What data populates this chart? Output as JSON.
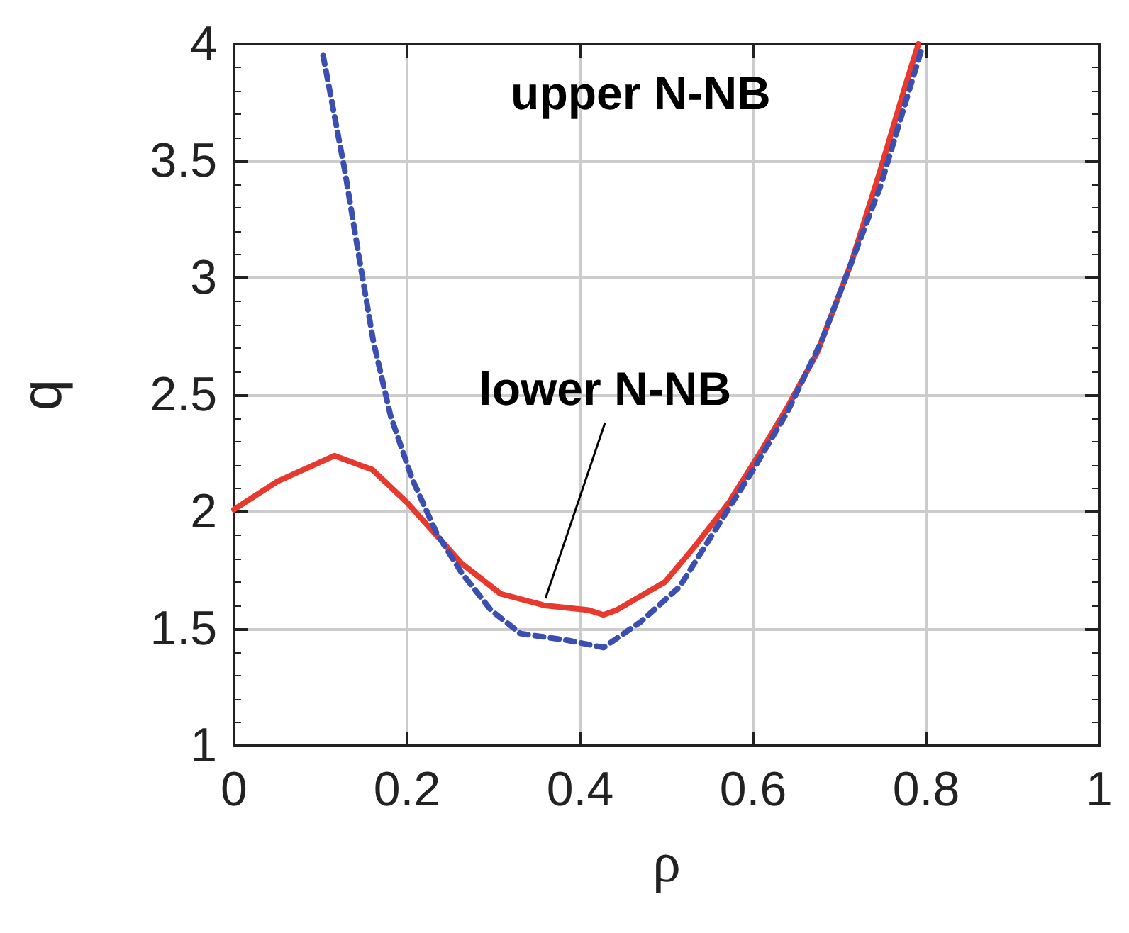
{
  "chart_data": {
    "type": "line",
    "xlabel": "ρ",
    "ylabel": "q",
    "xlim": [
      0,
      1
    ],
    "xticks": [
      0,
      0.2,
      0.4,
      0.6,
      0.8,
      1
    ],
    "ylim": [
      1,
      4
    ],
    "yticks": [
      1,
      1.5,
      2,
      2.5,
      3,
      3.5,
      4
    ],
    "grid": true,
    "marker": "none",
    "annotations": [
      "upper N-NB",
      {
        "text": "lower N-NB",
        "x": 0.36,
        "y": 1.63
      }
    ],
    "series": [
      {
        "color": "#e8392e",
        "line_style": "solid",
        "x": [
          0,
          0.05,
          0.116,
          0.16,
          0.2,
          0.234,
          0.263,
          0.308,
          0.359,
          0.41,
          0.427,
          0.442,
          0.498,
          0.532,
          0.572,
          0.611,
          0.64,
          0.674,
          0.713,
          0.747,
          0.775,
          0.791
        ],
        "values": [
          2.01,
          2.13,
          2.24,
          2.18,
          2.04,
          1.9,
          1.78,
          1.65,
          1.6,
          1.58,
          1.56,
          1.58,
          1.7,
          1.85,
          2.04,
          2.27,
          2.45,
          2.68,
          3.06,
          3.46,
          3.81,
          4.0
        ]
      },
      {
        "color": "#3a4fb0",
        "line_style": "dashed",
        "x": [
          0.103,
          0.128,
          0.144,
          0.161,
          0.181,
          0.206,
          0.234,
          0.263,
          0.297,
          0.331,
          0.387,
          0.427,
          0.47,
          0.515,
          0.554,
          0.6,
          0.64,
          0.679,
          0.713,
          0.747,
          0.781,
          0.795
        ],
        "values": [
          3.95,
          3.46,
          3.1,
          2.73,
          2.41,
          2.14,
          1.91,
          1.74,
          1.58,
          1.48,
          1.45,
          1.42,
          1.53,
          1.68,
          1.91,
          2.18,
          2.43,
          2.73,
          3.06,
          3.39,
          3.81,
          3.98
        ]
      }
    ]
  }
}
